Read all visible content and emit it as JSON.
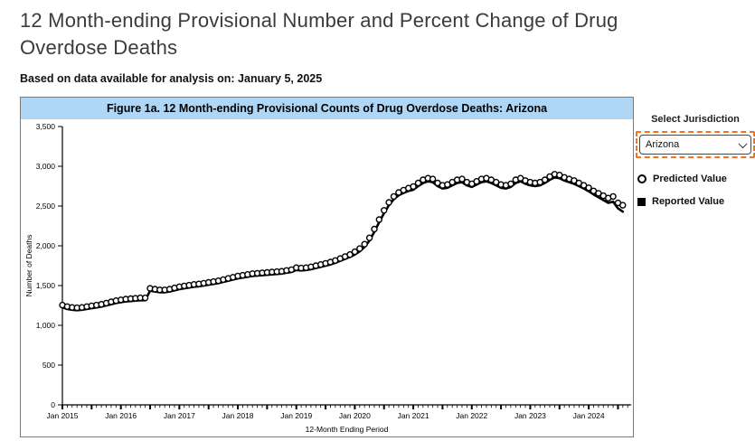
{
  "page": {
    "title": "12 Month-ending Provisional Number and Percent Change of Drug Overdose Deaths",
    "subtitle": "Based on data available for analysis on: January 5, 2025"
  },
  "figure": {
    "header": "Figure 1a. 12 Month-ending Provisional Counts of Drug Overdose Deaths: Arizona",
    "header_bg": "#afd7f5",
    "border_color": "#7b7b7b"
  },
  "sidebar": {
    "jurisdiction_label": "Select Jurisdiction",
    "jurisdiction_selected": "Arizona",
    "focus_outline_color": "#f4731f",
    "legend": [
      {
        "label": "Predicted Value",
        "marker": "open-circle-icon"
      },
      {
        "label": "Reported Value",
        "marker": "filled-square-icon"
      }
    ]
  },
  "chart_data": {
    "type": "line",
    "title": "Figure 1a. 12 Month-ending Provisional Counts of Drug Overdose Deaths: Arizona",
    "xlabel": "12-Month Ending Period",
    "ylabel": "Number of Deaths",
    "ylim": [
      0,
      3500
    ],
    "grid": false,
    "legend_position": "outside-right",
    "x_start": "Jan 2015",
    "x_interval": "monthly",
    "x_tick_labels": [
      "Jan 2015",
      "Jan 2016",
      "Jan 2017",
      "Jan 2018",
      "Jan 2019",
      "Jan 2020",
      "Jan 2021",
      "Jan 2022",
      "Jan 2023",
      "Jan 2024"
    ],
    "y_tick_labels": [
      "0",
      "500",
      "1,000",
      "1,500",
      "2,000",
      "2,500",
      "3,000",
      "3,500"
    ],
    "y_tick_values": [
      0,
      500,
      1000,
      1500,
      2000,
      2500,
      3000,
      3500
    ],
    "series": [
      {
        "name": "Predicted Value",
        "style": "open-circle-markers",
        "values": [
          1255,
          1235,
          1225,
          1220,
          1225,
          1235,
          1245,
          1255,
          1265,
          1280,
          1295,
          1310,
          1320,
          1330,
          1335,
          1340,
          1345,
          1345,
          1465,
          1455,
          1445,
          1445,
          1455,
          1470,
          1485,
          1495,
          1505,
          1515,
          1520,
          1530,
          1540,
          1550,
          1560,
          1575,
          1590,
          1605,
          1620,
          1630,
          1640,
          1650,
          1655,
          1660,
          1665,
          1670,
          1675,
          1680,
          1690,
          1700,
          1725,
          1720,
          1725,
          1735,
          1750,
          1765,
          1780,
          1795,
          1815,
          1840,
          1865,
          1890,
          1925,
          1965,
          2020,
          2100,
          2210,
          2330,
          2445,
          2545,
          2620,
          2670,
          2700,
          2725,
          2745,
          2790,
          2830,
          2850,
          2840,
          2790,
          2760,
          2770,
          2800,
          2830,
          2840,
          2800,
          2780,
          2810,
          2840,
          2850,
          2830,
          2800,
          2770,
          2760,
          2780,
          2830,
          2850,
          2820,
          2800,
          2790,
          2800,
          2830,
          2870,
          2900,
          2890,
          2860,
          2840,
          2820,
          2790,
          2760,
          2730,
          2690,
          2660,
          2630,
          2600,
          2620,
          2540,
          2510
        ]
      },
      {
        "name": "Reported Value",
        "style": "solid-line",
        "values": [
          1225,
          1205,
          1195,
          1190,
          1195,
          1205,
          1215,
          1225,
          1235,
          1250,
          1265,
          1280,
          1290,
          1300,
          1305,
          1310,
          1315,
          1315,
          1435,
          1425,
          1415,
          1415,
          1425,
          1440,
          1455,
          1465,
          1475,
          1485,
          1490,
          1500,
          1510,
          1520,
          1530,
          1545,
          1560,
          1575,
          1590,
          1600,
          1610,
          1620,
          1625,
          1630,
          1635,
          1640,
          1645,
          1650,
          1660,
          1670,
          1695,
          1690,
          1695,
          1705,
          1720,
          1735,
          1750,
          1765,
          1785,
          1810,
          1835,
          1860,
          1890,
          1930,
          1985,
          2065,
          2175,
          2295,
          2410,
          2510,
          2585,
          2635,
          2665,
          2690,
          2705,
          2750,
          2790,
          2810,
          2800,
          2750,
          2720,
          2730,
          2760,
          2790,
          2800,
          2760,
          2740,
          2770,
          2800,
          2810,
          2790,
          2760,
          2730,
          2720,
          2740,
          2790,
          2810,
          2780,
          2760,
          2750,
          2760,
          2790,
          2830,
          2860,
          2850,
          2820,
          2800,
          2780,
          2750,
          2720,
          2685,
          2645,
          2610,
          2575,
          2540,
          2555,
          2470,
          2430
        ]
      }
    ]
  }
}
